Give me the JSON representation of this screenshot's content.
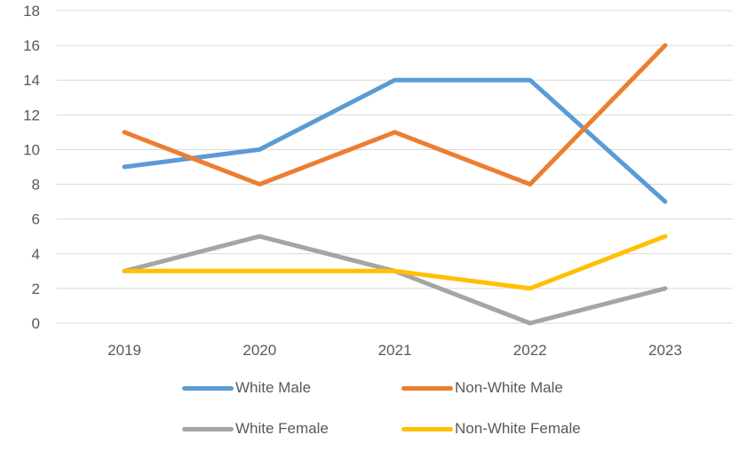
{
  "chart_data": {
    "type": "line",
    "title": "",
    "xlabel": "",
    "ylabel": "",
    "categories": [
      "2019",
      "2020",
      "2021",
      "2022",
      "2023"
    ],
    "ylim": [
      0,
      18
    ],
    "yticks": [
      0,
      2,
      4,
      6,
      8,
      10,
      12,
      14,
      16,
      18
    ],
    "grid": true,
    "legend_position": "bottom",
    "series": [
      {
        "name": "White Male",
        "color": "#5B9BD5",
        "values": [
          9,
          10,
          14,
          14,
          7
        ]
      },
      {
        "name": "Non-White Male",
        "color": "#ED7D31",
        "values": [
          11,
          8,
          11,
          8,
          16
        ]
      },
      {
        "name": "White Female",
        "color": "#A5A5A5",
        "values": [
          3,
          5,
          3,
          0,
          2
        ]
      },
      {
        "name": "Non-White Female",
        "color": "#FFC000",
        "values": [
          3,
          3,
          3,
          2,
          5
        ]
      }
    ]
  }
}
